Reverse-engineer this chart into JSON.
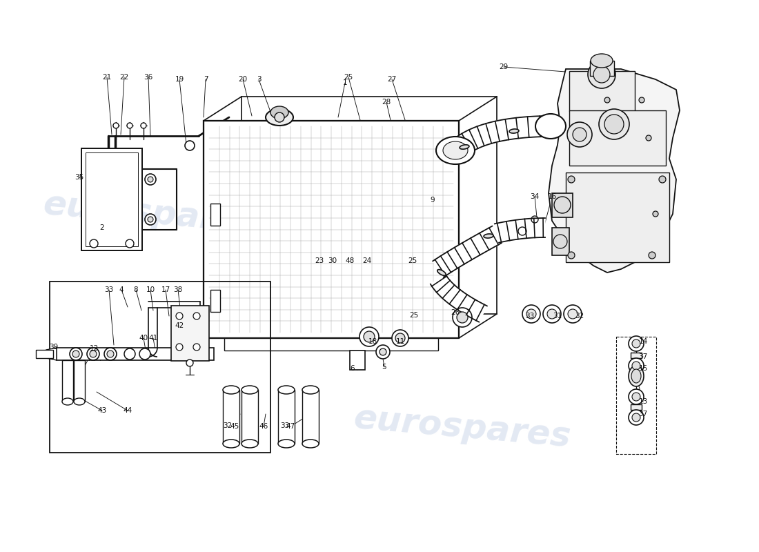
{
  "bg": "#ffffff",
  "lc": "#111111",
  "wm_color": "#c8d4e8",
  "wm_text": "eurospares",
  "fig_w": 11.0,
  "fig_h": 8.0,
  "dpi": 100
}
